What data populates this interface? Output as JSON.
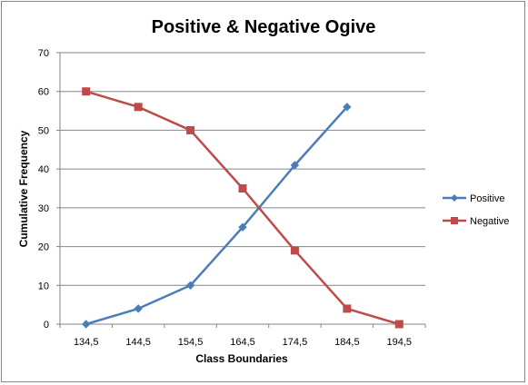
{
  "chart_data": {
    "type": "line",
    "title": "Positive & Negative Ogive",
    "xlabel": "Class Boundaries",
    "ylabel": "Cumulative Frequency",
    "categories": [
      "134,5",
      "144,5",
      "154,5",
      "164,5",
      "174,5",
      "184,5",
      "194,5"
    ],
    "ylim": [
      0,
      70
    ],
    "yticks": [
      "0",
      "10",
      "20",
      "30",
      "40",
      "50",
      "60",
      "70"
    ],
    "grid": true,
    "legend_position": "right",
    "series": [
      {
        "name": "Positive",
        "color": "#4a7ebb",
        "marker": "diamond",
        "values": [
          0,
          4,
          10,
          25,
          41,
          56,
          null
        ]
      },
      {
        "name": "Negative",
        "color": "#be4b48",
        "marker": "square",
        "values": [
          60,
          56,
          50,
          35,
          19,
          4,
          0
        ]
      }
    ]
  }
}
